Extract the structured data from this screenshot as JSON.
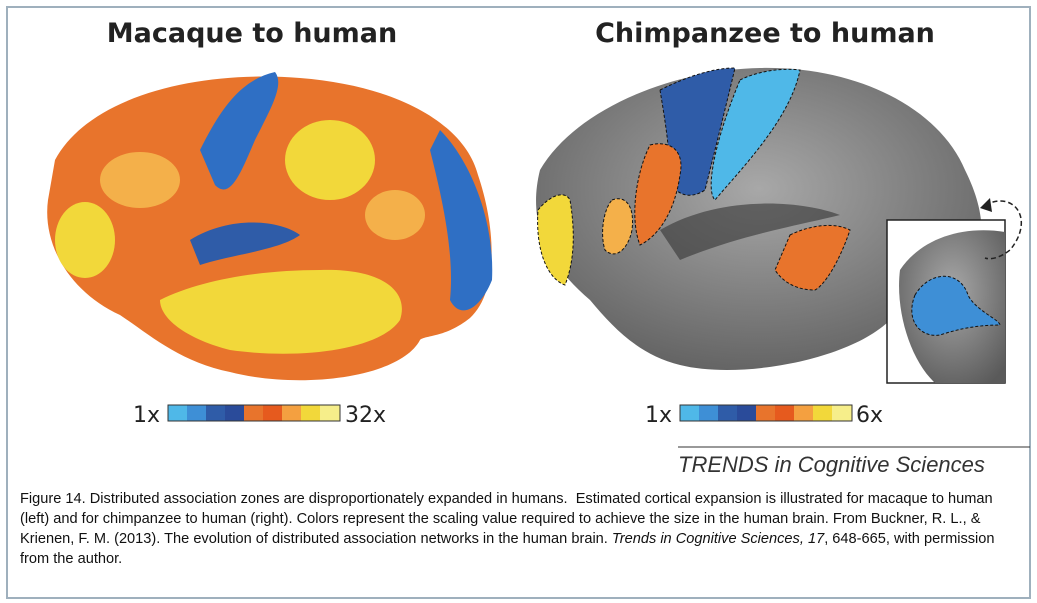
{
  "panels": [
    {
      "title": "Macaque to human",
      "scale_min": "1x",
      "scale_max": "32x"
    },
    {
      "title": "Chimpanzee to human",
      "scale_min": "1x",
      "scale_max": "6x"
    }
  ],
  "credit": "TRENDS in Cognitive Sciences",
  "caption": {
    "text": "Figure 14. Distributed association zones are disproportionately expanded in humans.  Estimated cortical expansion is illustrated for macaque to human (left) and for chimpanzee to human (right). Colors represent the scaling value required to achieve the size in the human brain. From Buckner, R. L., & Krienen, F. M. (2013). The evolution of distributed association networks in the human brain. ",
    "journal": "Trends in Cognitive Sciences, 17",
    "pages": ", 648-665, with permission from the author."
  }
}
